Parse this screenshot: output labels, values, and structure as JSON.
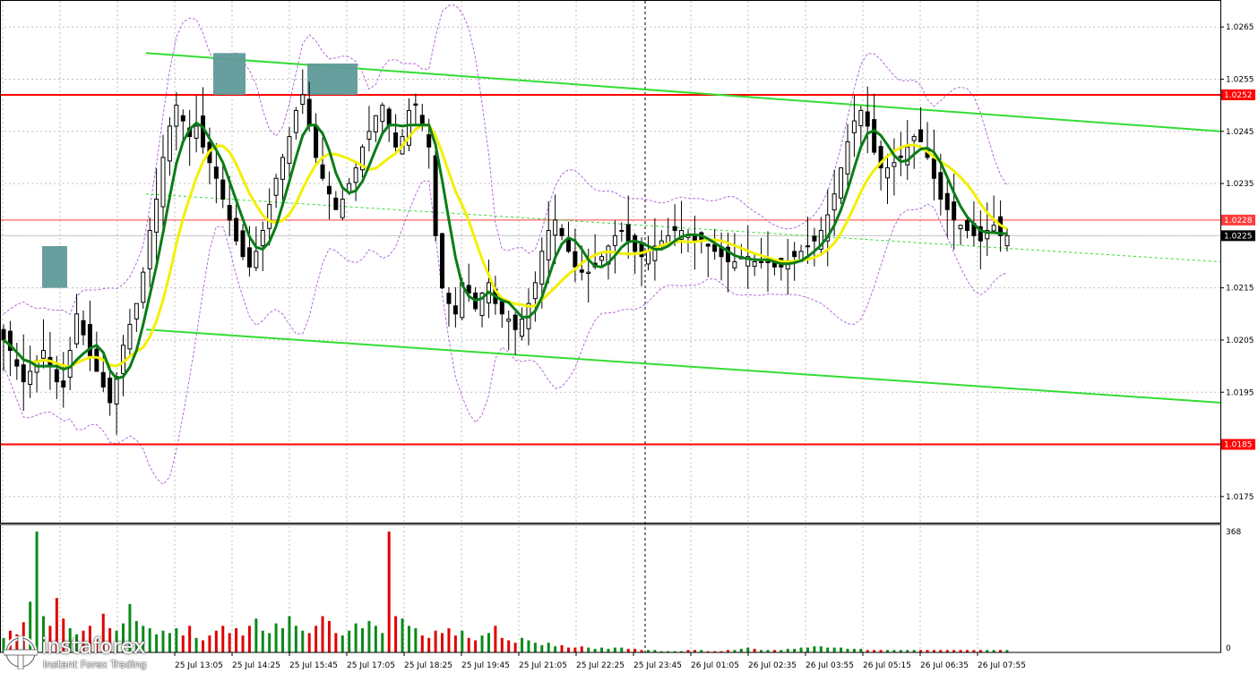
{
  "chart_data": {
    "type": "candlestick",
    "symbol_hint": "",
    "price_axis": {
      "min": 1.017,
      "max": 1.027,
      "ticks": [
        "1.0265",
        "1.0255",
        "1.0245",
        "1.0235",
        "1.0225",
        "1.0215",
        "1.0205",
        "1.0195",
        "1.0185",
        "1.0175"
      ]
    },
    "volume_axis": {
      "max_label": "368",
      "min_label": "0",
      "max": 368
    },
    "time_labels": [
      "25 Jul 13:05",
      "25 Jul 14:25",
      "25 Jul 15:45",
      "25 Jul 17:05",
      "25 Jul 18:25",
      "25 Jul 19:45",
      "25 Jul 21:05",
      "25 Jul 22:25",
      "25 Jul 23:45",
      "26 Jul 01:05",
      "26 Jul 02:35",
      "26 Jul 03:55",
      "26 Jul 05:15",
      "26 Jul 06:35",
      "26 Jul 07:55"
    ],
    "horizontal_levels": [
      {
        "price": 1.0252,
        "label": "1.0252",
        "color": "#ff0000"
      },
      {
        "price": 1.0185,
        "label": "1.0185",
        "color": "#ff0000"
      },
      {
        "price": 1.0228,
        "label": "1.0228",
        "color": "#ff3b3b"
      }
    ],
    "current_price": {
      "price": 1.0225,
      "label": "1.0225"
    },
    "channel_upper": [
      [
        0,
        1.026
      ],
      [
        1,
        1.0245
      ]
    ],
    "channel_lower": [
      [
        0,
        1.0207
      ],
      [
        1,
        1.0193
      ]
    ],
    "channel_mid": [
      [
        0,
        1.0233
      ],
      [
        1,
        1.022
      ]
    ],
    "highlight_boxes": [
      {
        "label": "",
        "x_frac": 0.05,
        "price_top": 1.0223,
        "price_bottom": 1.0215
      },
      {
        "label": "",
        "x_frac": 0.19,
        "price_top": 1.026,
        "price_bottom": 1.0252
      },
      {
        "label": "",
        "x_frac": 0.28,
        "price_top": 1.0258,
        "price_bottom": 1.0252
      }
    ],
    "candles_close": [
      1.0205,
      1.0203,
      1.02,
      1.0197,
      1.0199,
      1.0201,
      1.0203,
      1.02,
      1.0197,
      1.0196,
      1.0203,
      1.021,
      1.0206,
      1.0202,
      1.0199,
      1.0196,
      1.0193,
      1.0198,
      1.0204,
      1.0208,
      1.0212,
      1.0218,
      1.0226,
      1.0232,
      1.024,
      1.0246,
      1.025,
      1.0247,
      1.0244,
      1.0246,
      1.0242,
      1.0239,
      1.0236,
      1.0232,
      1.0228,
      1.0224,
      1.0221,
      1.0219,
      1.0222,
      1.0226,
      1.0231,
      1.0236,
      1.024,
      1.0244,
      1.0249,
      1.0252,
      1.0246,
      1.024,
      1.0236,
      1.0233,
      1.023,
      1.0232,
      1.0235,
      1.0238,
      1.0242,
      1.0245,
      1.0248,
      1.025,
      1.0246,
      1.0242,
      1.0244,
      1.0249,
      1.025,
      1.0246,
      1.0242,
      1.0225,
      1.0215,
      1.0212,
      1.021,
      1.0216,
      1.0214,
      1.0211,
      1.0214,
      1.0216,
      1.0212,
      1.021,
      1.0209,
      1.0207,
      1.0209,
      1.0212,
      1.0216,
      1.0222,
      1.0226,
      1.0228,
      1.0225,
      1.0222,
      1.0219,
      1.0218,
      1.0218,
      1.0219,
      1.0221,
      1.0223,
      1.0225,
      1.0226,
      1.0224,
      1.0222,
      1.0221,
      1.0222,
      1.0223,
      1.0224,
      1.0225,
      1.0226,
      1.0226,
      1.0225,
      1.0224,
      1.0224,
      1.0223,
      1.0222,
      1.0221,
      1.022,
      1.022,
      1.0221,
      1.0221,
      1.022,
      1.022,
      1.022,
      1.0219,
      1.0219,
      1.022,
      1.0221,
      1.0222,
      1.0223,
      1.0224,
      1.0226,
      1.0229,
      1.0233,
      1.0238,
      1.0243,
      1.0247,
      1.0249,
      1.0246,
      1.0241,
      1.0238,
      1.0238,
      1.0239,
      1.024,
      1.0242,
      1.0244,
      1.0243,
      1.024,
      1.0236,
      1.0232,
      1.023,
      1.0228,
      1.0227,
      1.0226,
      1.0225,
      1.0224,
      1.0226,
      1.0227,
      1.0225,
      1.0225
    ],
    "volumes_rel": [
      0.12,
      0.18,
      0.15,
      0.25,
      0.42,
      1.0,
      0.3,
      0.22,
      0.45,
      0.28,
      0.2,
      0.15,
      0.18,
      0.22,
      0.12,
      0.32,
      0.2,
      0.18,
      0.24,
      0.4,
      0.26,
      0.22,
      0.2,
      0.15,
      0.18,
      0.16,
      0.2,
      0.14,
      0.22,
      0.12,
      0.1,
      0.14,
      0.18,
      0.22,
      0.16,
      0.2,
      0.14,
      0.22,
      0.28,
      0.18,
      0.16,
      0.24,
      0.2,
      0.3,
      0.22,
      0.18,
      0.16,
      0.22,
      0.3,
      0.26,
      0.16,
      0.14,
      0.18,
      0.24,
      0.2,
      0.26,
      0.22,
      0.16,
      1.0,
      0.3,
      0.28,
      0.22,
      0.2,
      0.14,
      0.12,
      0.18,
      0.16,
      0.2,
      0.14,
      0.18,
      0.12,
      0.1,
      0.14,
      0.16,
      0.22,
      0.12,
      0.1,
      0.08,
      0.12,
      0.1,
      0.08,
      0.06,
      0.08,
      0.05,
      0.06,
      0.04,
      0.04,
      0.05,
      0.04,
      0.03,
      0.04,
      0.03,
      0.04,
      0.04,
      0.03,
      0.03,
      0.02,
      0.02,
      0.02,
      0.01,
      0.01,
      0.01,
      0.01,
      0.02,
      0.02,
      0.02,
      0.01,
      0.01,
      0.01,
      0.02,
      0.02,
      0.03,
      0.04,
      0.03,
      0.02,
      0.02,
      0.02,
      0.02,
      0.03,
      0.03,
      0.04,
      0.04,
      0.05,
      0.05,
      0.04,
      0.04,
      0.04,
      0.03,
      0.03,
      0.03,
      0.02,
      0.02,
      0.02,
      0.02,
      0.02,
      0.02,
      0.02,
      0.02,
      0.02,
      0.02,
      0.02,
      0.02,
      0.02,
      0.02,
      0.02,
      0.02,
      0.02,
      0.02,
      0.02
    ]
  },
  "colors": {
    "grid": "#bfbfbf",
    "axis": "#000000",
    "candle": "#000000",
    "red_level": "#ff0000",
    "channel": "#33dd33",
    "ma_fast": "#0a7d16",
    "ma_slow": "#f2f000",
    "bands": "#b46bd8",
    "vol_up": "#0a8a1a",
    "vol_down": "#e00000",
    "highlight": "#5f9a9a"
  },
  "branding": {
    "name": "instaforex",
    "tagline": "Instant Forex Trading"
  }
}
